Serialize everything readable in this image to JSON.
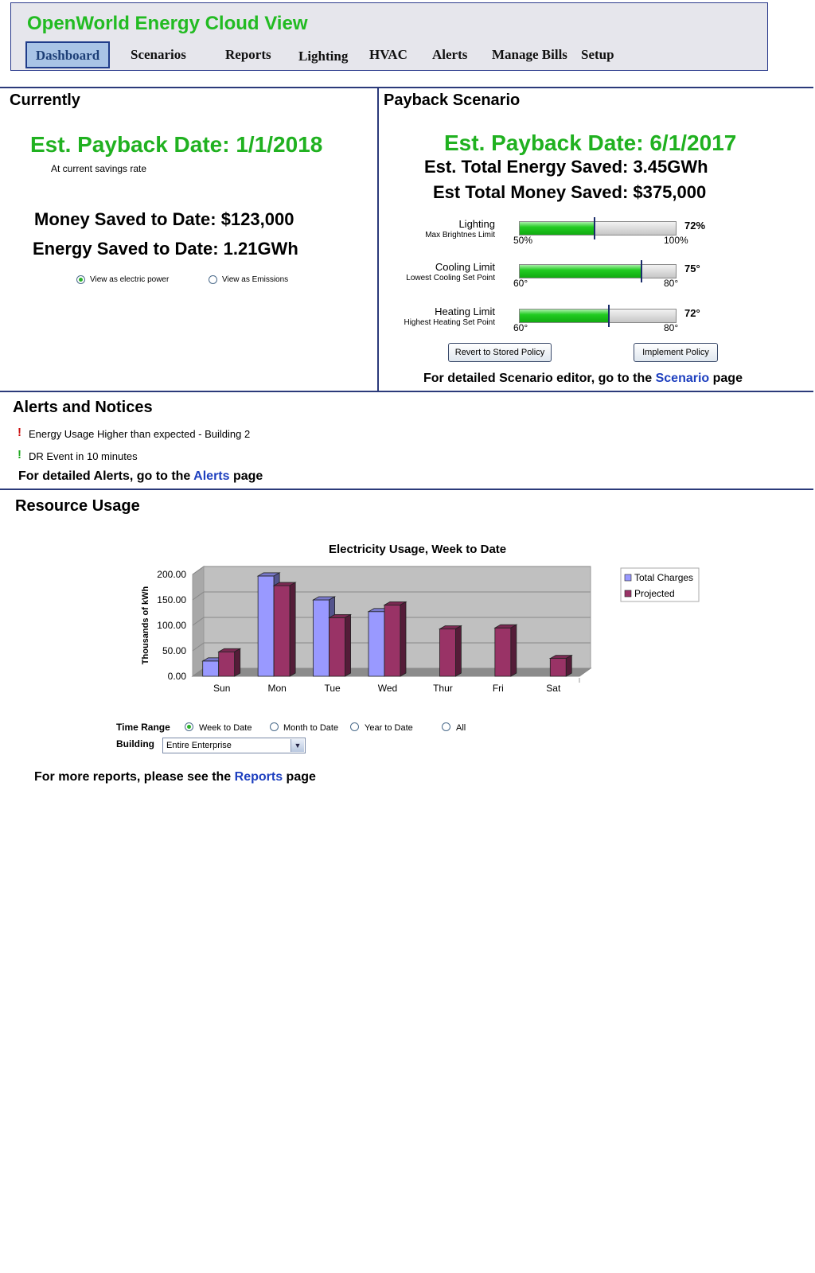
{
  "app_title": "OpenWorld Energy Cloud View",
  "nav": [
    "Dashboard",
    "Scenarios",
    "Reports",
    "Lighting",
    "HVAC",
    "Alerts",
    "Manage Bills",
    "Setup"
  ],
  "currently": {
    "title": "Currently",
    "payback": "Est. Payback Date: 1/1/2018",
    "payback_note": "At current savings rate",
    "money_saved": "Money Saved to Date: $123,000",
    "energy_saved": "Energy Saved to Date: 1.21GWh",
    "view_options": [
      "View as electric power",
      "View as Emissions"
    ],
    "view_selected": "View as electric power"
  },
  "scenario": {
    "title": "Payback Scenario",
    "payback": "Est. Payback Date: 6/1/2017",
    "energy_total": "Est. Total Energy Saved: 3.45GWh",
    "money_total": "Est Total Money Saved: $375,000",
    "sliders": [
      {
        "label": "Lighting",
        "sublabel": "Max Brightnes Limit",
        "min": "50%",
        "max": "100%",
        "value_text": "72%",
        "fill": 0.48,
        "marker": 0.48
      },
      {
        "label": "Cooling Limit",
        "sublabel": "Lowest Cooling Set Point",
        "min": "60°",
        "max": "80°",
        "value_text": "75°",
        "fill": 0.78,
        "marker": 0.78
      },
      {
        "label": "Heating Limit",
        "sublabel": "Highest Heating Set Point",
        "min": "60°",
        "max": "80°",
        "value_text": "72°",
        "fill": 0.57,
        "marker": 0.57
      }
    ],
    "revert_button": "Revert to Stored Policy",
    "implement_button": "Implement Policy",
    "footer_pre": "For detailed Scenario editor, go to the ",
    "footer_link": "Scenario",
    "footer_post": " page"
  },
  "alerts": {
    "title": "Alerts and Notices",
    "items": [
      {
        "mark": "!",
        "color": "#cc1111",
        "text": "Energy Usage Higher than expected - Building 2"
      },
      {
        "mark": "!",
        "color": "#22aa22",
        "text": "DR Event in 10 minutes"
      }
    ],
    "footer_pre": "For detailed Alerts, go to the ",
    "footer_link": "Alerts",
    "footer_post": " page"
  },
  "resource": {
    "title": "Resource Usage",
    "time_range_label": "Time Range",
    "time_range_options": [
      "Week to Date",
      "Month to Date",
      "Year to Date",
      "All"
    ],
    "time_range_selected": "Week to Date",
    "building_label": "Building",
    "building_value": "Entire Enterprise",
    "footer_pre": "For more reports, please see the ",
    "footer_link": "Reports",
    "footer_post": " page"
  },
  "chart_data": {
    "type": "bar",
    "title": "Electricity Usage, Week to Date",
    "ylabel": "Thousands of kWh",
    "xlabel": "",
    "categories": [
      "Sun",
      "Mon",
      "Tue",
      "Wed",
      "Thur",
      "Fri",
      "Sat"
    ],
    "series": [
      {
        "name": "Total Charges",
        "color": "#9999ff",
        "values": [
          30,
          197,
          150,
          127,
          null,
          null,
          null
        ]
      },
      {
        "name": "Projected",
        "color": "#993366",
        "values": [
          48,
          178,
          115,
          140,
          93,
          95,
          35
        ]
      }
    ],
    "ylim": [
      0,
      200
    ],
    "yticks": [
      "0.00",
      "50.00",
      "100.00",
      "150.00",
      "200.00"
    ],
    "grid": true,
    "legend": "right"
  }
}
